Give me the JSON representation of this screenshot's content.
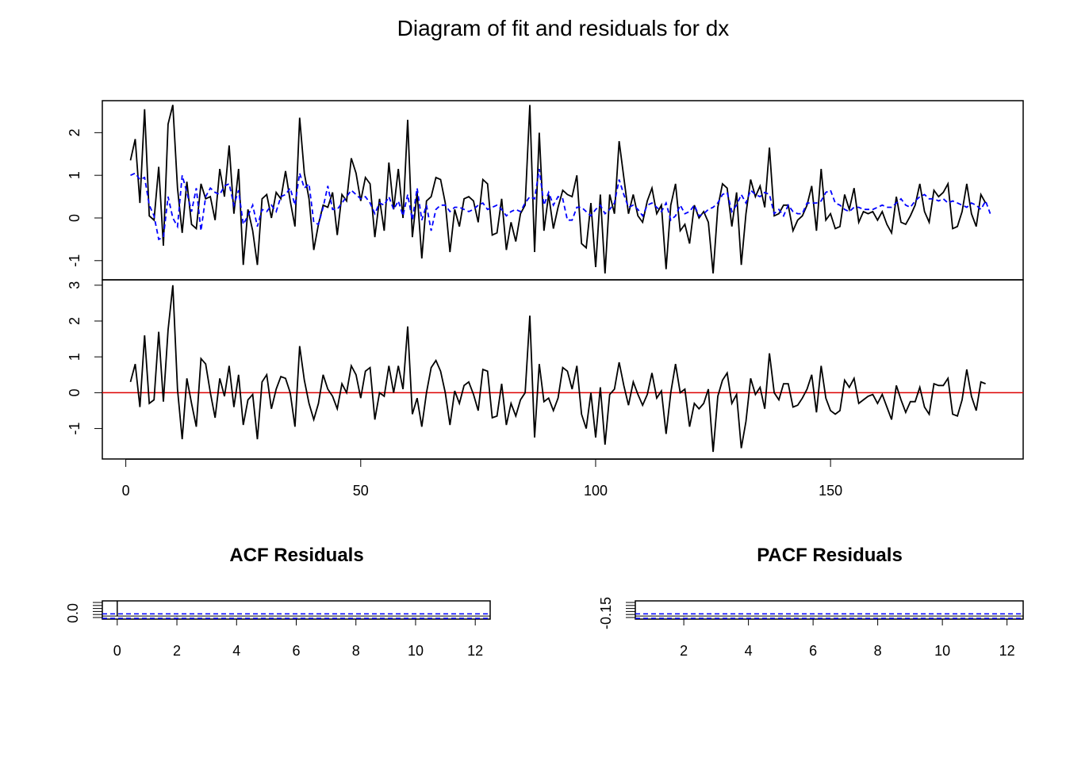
{
  "chart_data": [
    {
      "type": "line",
      "panel": "fit",
      "title": "Diagram of fit and residuals for dx",
      "x_ticks": [
        0,
        50,
        100,
        150
      ],
      "y_ticks": [
        "-1",
        "0",
        "1",
        "2"
      ],
      "ylim": [
        -1.45,
        2.75
      ],
      "xlim": [
        -5,
        191
      ],
      "grid": false,
      "series": [
        {
          "color": "#000000",
          "style": "solid",
          "x_start": 1,
          "values": [
            1.35,
            1.85,
            0.35,
            2.55,
            0.05,
            -0.05,
            1.2,
            -0.65,
            2.2,
            2.65,
            0.7,
            -0.35,
            0.85,
            -0.15,
            -0.25,
            0.8,
            0.45,
            0.5,
            -0.05,
            1.15,
            0.5,
            1.7,
            0.1,
            1.15,
            -1.1,
            0.2,
            -0.3,
            -1.1,
            0.45,
            0.55,
            0.0,
            0.6,
            0.45,
            1.1,
            0.4,
            -0.2,
            2.35,
            1.05,
            0.45,
            -0.75,
            -0.15,
            0.3,
            0.25,
            0.6,
            -0.4,
            0.55,
            0.4,
            1.4,
            1.05,
            0.4,
            0.95,
            0.8,
            -0.45,
            0.45,
            -0.3,
            1.3,
            0.2,
            1.15,
            0.0,
            2.3,
            -0.45,
            0.6,
            -0.95,
            0.4,
            0.5,
            0.95,
            0.9,
            0.35,
            -0.8,
            0.2,
            -0.2,
            0.45,
            0.5,
            0.4,
            -0.1,
            0.9,
            0.8,
            -0.4,
            -0.35,
            0.45,
            -0.75,
            -0.1,
            -0.55,
            0.1,
            0.3,
            2.65,
            -0.8,
            2.0,
            -0.3,
            0.55,
            -0.25,
            0.25,
            0.65,
            0.55,
            0.5,
            1.0,
            -0.6,
            -0.7,
            0.35,
            -1.15,
            0.55,
            -1.3,
            0.55,
            0.1,
            1.8,
            0.95,
            0.1,
            0.55,
            0.05,
            -0.1,
            0.4,
            0.7,
            0.1,
            0.3,
            -1.2,
            0.3,
            0.8,
            -0.3,
            -0.15,
            -0.6,
            0.3,
            0.0,
            0.15,
            -0.1,
            -1.3,
            0.25,
            0.8,
            0.7,
            -0.2,
            0.6,
            -1.1,
            0.1,
            0.9,
            0.5,
            0.75,
            0.25,
            1.65,
            0.05,
            0.1,
            0.3,
            0.3,
            -0.3,
            -0.05,
            0.05,
            0.3,
            0.75,
            -0.3,
            1.15,
            -0.05,
            0.1,
            -0.25,
            -0.2,
            0.55,
            0.2,
            0.7,
            -0.1,
            0.15,
            0.1,
            0.15,
            -0.05,
            0.15,
            -0.15,
            -0.35,
            0.5,
            -0.1,
            -0.15,
            0.05,
            0.3,
            0.8,
            0.15,
            -0.1,
            0.65,
            0.5,
            0.6,
            0.8,
            -0.25,
            -0.2,
            0.15,
            0.8,
            0.1,
            -0.2,
            0.55,
            0.35
          ]
        },
        {
          "color": "#0000ff",
          "style": "dashed",
          "x_start": 1,
          "values": [
            1.0,
            1.05,
            0.9,
            0.95,
            0.3,
            0.05,
            -0.5,
            -0.45,
            0.5,
            0.0,
            -0.2,
            1.0,
            0.6,
            0.15,
            0.7,
            -0.3,
            0.5,
            0.7,
            0.6,
            0.55,
            0.75,
            0.8,
            0.3,
            0.65,
            -0.15,
            0.05,
            0.3,
            -0.2,
            0.2,
            0.15,
            0.3,
            0.15,
            0.5,
            0.55,
            0.7,
            0.3,
            1.05,
            0.7,
            0.8,
            -0.1,
            -0.15,
            0.25,
            0.75,
            0.2,
            0.2,
            0.35,
            0.5,
            0.65,
            0.55,
            0.45,
            0.5,
            0.35,
            0.1,
            0.35,
            0.3,
            0.5,
            0.2,
            0.4,
            0.05,
            0.55,
            -0.05,
            0.7,
            -0.05,
            0.3,
            -0.3,
            0.2,
            0.3,
            0.3,
            0.15,
            0.25,
            0.25,
            0.2,
            0.15,
            0.2,
            0.3,
            0.35,
            0.2,
            0.25,
            0.3,
            0.2,
            0.05,
            0.15,
            0.2,
            0.15,
            0.35,
            0.5,
            0.45,
            1.15,
            0.3,
            0.6,
            0.3,
            0.5,
            0.45,
            -0.05,
            -0.05,
            0.25,
            0.25,
            0.15,
            0.05,
            0.2,
            0.3,
            0.1,
            0.2,
            0.35,
            0.9,
            0.55,
            0.25,
            0.3,
            0.2,
            0.05,
            0.3,
            0.35,
            0.25,
            0.15,
            0.35,
            -0.05,
            0.05,
            0.3,
            0.1,
            0.15,
            0.3,
            0.05,
            0.1,
            0.2,
            0.25,
            0.35,
            0.55,
            0.6,
            0.15,
            0.3,
            0.55,
            0.35,
            0.65,
            0.55,
            0.5,
            0.6,
            0.55,
            0.1,
            0.2,
            0.05,
            0.3,
            0.15,
            0.1,
            0.1,
            0.35,
            0.35,
            0.35,
            0.4,
            0.6,
            0.65,
            0.35,
            0.3,
            0.2,
            0.15,
            0.25,
            0.25,
            0.2,
            0.2,
            0.2,
            0.25,
            0.3,
            0.25,
            0.25,
            0.35,
            0.45,
            0.3,
            0.25,
            0.4,
            0.5,
            0.55,
            0.45,
            0.45,
            0.4,
            0.45,
            0.35,
            0.4,
            0.35,
            0.3,
            0.25,
            0.35,
            0.3,
            0.2,
            0.4,
            0.1
          ]
        }
      ]
    },
    {
      "type": "line",
      "panel": "residuals",
      "y_ticks": [
        "-1",
        "0",
        "1",
        "2",
        "3"
      ],
      "ylim": [
        -1.85,
        3.15
      ],
      "xlim": [
        -5,
        191
      ],
      "x_ticks": [
        0,
        50,
        100,
        150
      ],
      "reference_line": {
        "y": 0,
        "color": "#dd0000"
      },
      "series": [
        {
          "color": "#000000",
          "style": "solid",
          "x_start": 1,
          "values": [
            0.3,
            0.8,
            -0.4,
            1.6,
            -0.3,
            -0.2,
            1.7,
            -0.25,
            1.75,
            3.0,
            0.1,
            -1.3,
            0.4,
            -0.3,
            -0.95,
            0.95,
            0.8,
            0.0,
            -0.7,
            0.4,
            -0.1,
            0.75,
            -0.4,
            0.5,
            -0.9,
            -0.2,
            -0.05,
            -1.3,
            0.3,
            0.5,
            -0.45,
            0.1,
            0.45,
            0.4,
            0.0,
            -0.95,
            1.3,
            0.35,
            -0.3,
            -0.75,
            -0.3,
            0.5,
            0.1,
            -0.1,
            -0.45,
            0.25,
            0.0,
            0.75,
            0.5,
            -0.15,
            0.6,
            0.7,
            -0.75,
            0.0,
            -0.1,
            0.75,
            0.0,
            0.75,
            0.1,
            1.85,
            -0.6,
            -0.15,
            -0.95,
            0.0,
            0.7,
            0.9,
            0.6,
            0.0,
            -0.9,
            0.05,
            -0.3,
            0.2,
            0.3,
            -0.05,
            -0.5,
            0.65,
            0.6,
            -0.7,
            -0.65,
            0.25,
            -0.9,
            -0.3,
            -0.65,
            -0.2,
            0.0,
            2.15,
            -1.25,
            0.8,
            -0.25,
            -0.15,
            -0.5,
            -0.15,
            0.7,
            0.6,
            0.1,
            0.75,
            -0.6,
            -1.0,
            0.0,
            -1.25,
            0.15,
            -1.45,
            -0.05,
            0.1,
            0.85,
            0.2,
            -0.35,
            0.3,
            -0.05,
            -0.35,
            -0.05,
            0.55,
            -0.15,
            0.05,
            -1.15,
            0.0,
            0.8,
            0.0,
            0.1,
            -0.95,
            -0.3,
            -0.45,
            -0.3,
            0.1,
            -1.65,
            -0.1,
            0.35,
            0.55,
            -0.3,
            -0.05,
            -1.55,
            -0.8,
            0.4,
            -0.05,
            0.15,
            -0.45,
            1.1,
            0.0,
            -0.2,
            0.25,
            0.25,
            -0.4,
            -0.35,
            -0.15,
            0.1,
            0.5,
            -0.55,
            0.75,
            -0.15,
            -0.5,
            -0.6,
            -0.5,
            0.35,
            0.15,
            0.4,
            -0.3,
            -0.2,
            -0.1,
            -0.05,
            -0.3,
            -0.05,
            -0.4,
            -0.75,
            0.2,
            -0.2,
            -0.55,
            -0.25,
            -0.25,
            0.15,
            -0.4,
            -0.6,
            0.25,
            0.2,
            0.2,
            0.4,
            -0.6,
            -0.65,
            -0.2,
            0.65,
            -0.1,
            -0.5,
            0.3,
            0.25
          ]
        }
      ]
    },
    {
      "type": "bar",
      "panel": "acf",
      "title": "ACF Residuals",
      "x_ticks": [
        0,
        2,
        4,
        6,
        8,
        10,
        12
      ],
      "y_ticks": [
        "0.0"
      ],
      "xlim": [
        -0.5,
        12.5
      ],
      "lags": [
        0,
        1,
        2,
        3,
        4,
        5,
        6,
        7,
        8,
        9,
        10,
        11,
        12
      ],
      "values": [
        1.0,
        0.02,
        -0.03,
        0.01,
        -0.02,
        0.03,
        -0.01,
        0.02,
        -0.02,
        0.01,
        0.0,
        -0.01,
        0.02
      ],
      "confidence_band": {
        "value": 0.145,
        "color": "#0000ff",
        "style": "dashed"
      }
    },
    {
      "type": "bar",
      "panel": "pacf",
      "title": "PACF Residuals",
      "x_ticks": [
        2,
        4,
        6,
        8,
        10,
        12
      ],
      "y_ticks": [
        "-0.15"
      ],
      "xlim": [
        0.5,
        12.5
      ],
      "lags": [
        1,
        2,
        3,
        4,
        5,
        6,
        7,
        8,
        9,
        10,
        11,
        12
      ],
      "values": [
        0.02,
        -0.03,
        0.01,
        -0.02,
        0.03,
        -0.01,
        0.02,
        -0.02,
        0.01,
        0.0,
        -0.01,
        0.02
      ],
      "confidence_band": {
        "value": 0.145,
        "color": "#0000ff",
        "style": "dashed"
      }
    }
  ]
}
